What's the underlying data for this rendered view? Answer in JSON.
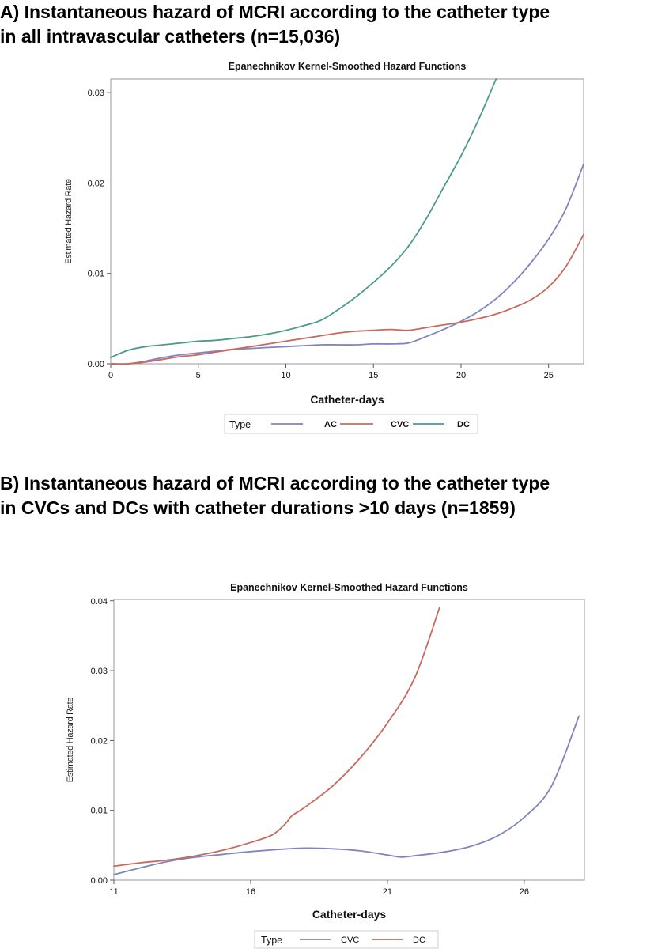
{
  "headings": {
    "a_line1": "A) Instantaneous hazard of MCRI according to the catheter type",
    "a_line2": "in all intravascular catheters  (n=15,036)",
    "b_line1": "B) Instantaneous hazard of MCRI according to the catheter type",
    "b_line2": "in CVCs and DCs with catheter durations >10 days (n=1859)"
  },
  "colors": {
    "blue": "#7f85bf",
    "red": "#c8695e",
    "teal": "#4c9a8e"
  },
  "chart_data": [
    {
      "type": "line",
      "title": "Epanechnikov Kernel-Smoothed Hazard Functions",
      "xlabel": "Catheter-days",
      "ylabel": "Estimated Hazard Rate",
      "xlim": [
        0,
        27
      ],
      "ylim": [
        0,
        0.0315
      ],
      "xticks": [
        0,
        5,
        10,
        15,
        20,
        25
      ],
      "yticks": [
        0,
        0.01,
        0.02,
        0.03
      ],
      "ytick_labels": [
        "0.00",
        "0.01",
        "0.02",
        "0.03"
      ],
      "grid": false,
      "legend_position": "bottom",
      "legend_title": "Type",
      "series": [
        {
          "name": "AC",
          "color": "#7f85bf",
          "x": [
            0,
            1,
            2,
            3,
            4,
            5,
            6,
            7,
            8,
            9,
            10,
            11,
            12,
            13,
            14,
            15,
            16,
            17,
            18,
            19,
            20,
            21,
            22,
            23,
            24,
            25,
            26,
            27
          ],
          "y": [
            0.0,
            0.0,
            0.0003,
            0.0007,
            0.001,
            0.0012,
            0.0014,
            0.0016,
            0.0017,
            0.0018,
            0.0019,
            0.002,
            0.0021,
            0.0021,
            0.0021,
            0.0022,
            0.0022,
            0.0023,
            0.003,
            0.0038,
            0.0047,
            0.0058,
            0.0072,
            0.009,
            0.0112,
            0.0138,
            0.0172,
            0.0221
          ]
        },
        {
          "name": "CVC",
          "color": "#c8695e",
          "x": [
            0,
            1,
            2,
            3,
            4,
            5,
            6,
            7,
            8,
            9,
            10,
            11,
            12,
            13,
            14,
            15,
            16,
            17,
            18,
            19,
            20,
            21,
            22,
            23,
            24,
            25,
            26,
            27
          ],
          "y": [
            0.0,
            0.0,
            0.0002,
            0.0005,
            0.0008,
            0.001,
            0.0013,
            0.0016,
            0.0019,
            0.0022,
            0.0025,
            0.0028,
            0.0031,
            0.0034,
            0.0036,
            0.0037,
            0.0038,
            0.0037,
            0.004,
            0.0043,
            0.0046,
            0.005,
            0.0055,
            0.0062,
            0.0071,
            0.0085,
            0.0108,
            0.0143
          ]
        },
        {
          "name": "DC",
          "color": "#4c9a8e",
          "x": [
            0,
            1,
            2,
            3,
            4,
            5,
            6,
            7,
            8,
            9,
            10,
            11,
            12,
            13,
            14,
            15,
            16,
            17,
            18,
            19,
            20,
            21,
            22
          ],
          "y": [
            0.0007,
            0.0015,
            0.0019,
            0.0021,
            0.0023,
            0.0025,
            0.0026,
            0.0028,
            0.003,
            0.0033,
            0.0037,
            0.0042,
            0.0048,
            0.006,
            0.0074,
            0.009,
            0.0108,
            0.013,
            0.016,
            0.0195,
            0.023,
            0.027,
            0.0315
          ]
        }
      ]
    },
    {
      "type": "line",
      "title": "Epanechnikov Kernel-Smoothed Hazard Functions",
      "xlabel": "Catheter-days",
      "ylabel": "Estimated Hazard Rate",
      "xlim": [
        11,
        28.2
      ],
      "ylim": [
        0,
        0.0402
      ],
      "xticks": [
        11,
        16,
        21,
        26
      ],
      "yticks": [
        0,
        0.01,
        0.02,
        0.03,
        0.04
      ],
      "ytick_labels": [
        "0.00",
        "0.01",
        "0.02",
        "0.03",
        "0.04"
      ],
      "grid": false,
      "legend_position": "bottom",
      "legend_title": "Type",
      "series": [
        {
          "name": "CVC",
          "color": "#7f85bf",
          "x": [
            11,
            12,
            13,
            14,
            15,
            16,
            17,
            18,
            19,
            20,
            21,
            21.5,
            22,
            23,
            24,
            25,
            26,
            27,
            28
          ],
          "y": [
            0.0008,
            0.0018,
            0.0027,
            0.0033,
            0.0037,
            0.0041,
            0.0044,
            0.0046,
            0.0045,
            0.0042,
            0.0036,
            0.0033,
            0.0035,
            0.004,
            0.0048,
            0.0063,
            0.009,
            0.0135,
            0.0235
          ]
        },
        {
          "name": "DC",
          "color": "#c8695e",
          "x": [
            11,
            12,
            13,
            14,
            15,
            16,
            16.8,
            17.3,
            17.5,
            18,
            19,
            20,
            21,
            22,
            22.9
          ],
          "y": [
            0.002,
            0.0025,
            0.0029,
            0.0035,
            0.0043,
            0.0054,
            0.0065,
            0.0082,
            0.0092,
            0.0105,
            0.0135,
            0.0175,
            0.0225,
            0.029,
            0.039
          ]
        }
      ]
    }
  ]
}
